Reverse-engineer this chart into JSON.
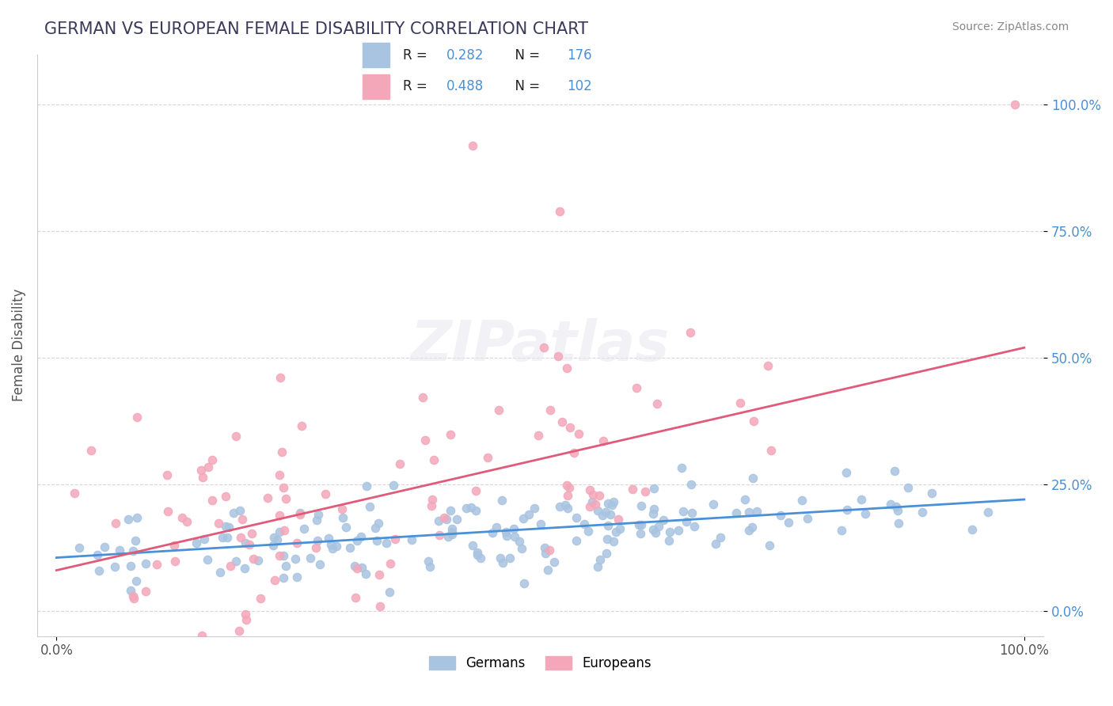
{
  "title": "GERMAN VS EUROPEAN FEMALE DISABILITY CORRELATION CHART",
  "source": "Source: ZipAtlas.com",
  "xlabel": "",
  "ylabel": "Female Disability",
  "xlim": [
    0.0,
    1.0
  ],
  "ylim": [
    -0.05,
    1.1
  ],
  "yticks": [
    0.0,
    0.25,
    0.5,
    0.75,
    1.0
  ],
  "ytick_labels": [
    "0.0%",
    "25.0%",
    "50.0%",
    "75.0%",
    "100.0%"
  ],
  "xticks": [
    0.0,
    1.0
  ],
  "xtick_labels": [
    "0.0%",
    "100.0%"
  ],
  "german_R": 0.282,
  "german_N": 176,
  "european_R": 0.488,
  "european_N": 102,
  "german_color": "#a8c4e0",
  "european_color": "#f4a7b9",
  "german_line_color": "#4a90d9",
  "european_line_color": "#e05a7a",
  "background_color": "#ffffff",
  "title_color": "#3a3a5c",
  "source_color": "#888888",
  "legend_label_german": "Germans",
  "legend_label_european": "Europeans",
  "watermark": "ZIPatlas",
  "seed": 42,
  "german_intercept": 0.105,
  "german_slope": 0.115,
  "european_intercept": 0.08,
  "european_slope": 0.44
}
